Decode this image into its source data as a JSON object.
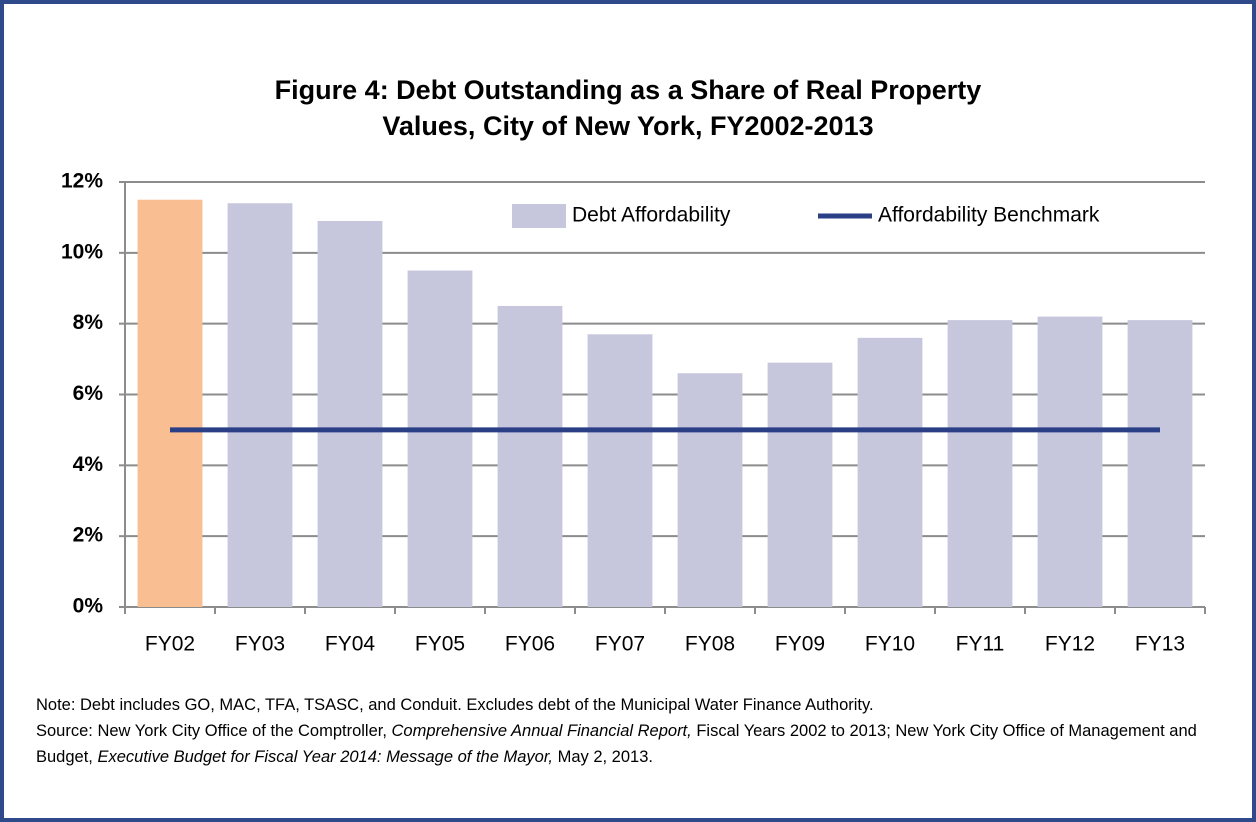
{
  "chart_data": {
    "type": "bar",
    "title": "Figure 4: Debt Outstanding as a Share of Real Property Values, City of New York, FY2002-2013",
    "categories": [
      "FY02",
      "FY03",
      "FY04",
      "FY05",
      "FY06",
      "FY07",
      "FY08",
      "FY09",
      "FY10",
      "FY11",
      "FY12",
      "FY13"
    ],
    "series": [
      {
        "name": "Debt Affordability",
        "type": "bar",
        "color": "#c6c6dd",
        "colors": [
          "#f9be92",
          "#c6c6dd",
          "#c6c6dd",
          "#c6c6dd",
          "#c6c6dd",
          "#c6c6dd",
          "#c6c6dd",
          "#c6c6dd",
          "#c6c6dd",
          "#c6c6dd",
          "#c6c6dd",
          "#c6c6dd"
        ],
        "values": [
          11.5,
          11.4,
          10.9,
          9.5,
          8.5,
          7.7,
          6.6,
          6.9,
          7.6,
          8.1,
          8.2,
          8.1
        ]
      },
      {
        "name": "Affordability Benchmark",
        "type": "line",
        "color": "#2b3f87",
        "values": [
          5,
          5,
          5,
          5,
          5,
          5,
          5,
          5,
          5,
          5,
          5,
          5
        ]
      }
    ],
    "ylim": [
      0,
      12
    ],
    "yticks": [
      {
        "value": 0,
        "label": "0%"
      },
      {
        "value": 2,
        "label": "2%"
      },
      {
        "value": 4,
        "label": "4%"
      },
      {
        "value": 6,
        "label": "6%"
      },
      {
        "value": 8,
        "label": "8%"
      },
      {
        "value": 10,
        "label": "10%"
      },
      {
        "value": 12,
        "label": "12%"
      }
    ],
    "grid": true,
    "legend": "top-right",
    "note": "Note:  Debt includes GO, MAC, TFA, TSASC, and Conduit.  Excludes debt of the Municipal Water Finance Authority.",
    "source": [
      {
        "text": "Source: New York City Office of the Comptroller, "
      },
      {
        "text": "Comprehensive Annual Financial Report,",
        "italic": true
      },
      {
        "text": " Fiscal Years 2002 to 2013; New York City Office of Management and Budget, "
      },
      {
        "text": "Executive Budget for Fiscal Year 2014: Message of the Mayor,",
        "italic": true
      },
      {
        "text": " May 2, 2013."
      }
    ]
  }
}
